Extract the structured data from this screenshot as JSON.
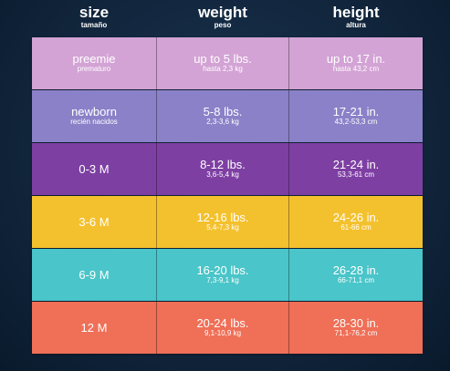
{
  "header": {
    "size": {
      "title": "size",
      "subtitle": "tamaño"
    },
    "weight": {
      "title": "weight",
      "subtitle": "peso"
    },
    "height": {
      "title": "height",
      "subtitle": "altura"
    }
  },
  "rows": [
    {
      "color": "#d3a3d5",
      "size": {
        "main": "preemie",
        "sub": "prematuro"
      },
      "weight": {
        "main": "up to 5 lbs.",
        "sub": "hasta 2,3 kg"
      },
      "height": {
        "main": "up to 17 in.",
        "sub": "hasta 43,2 cm"
      }
    },
    {
      "color": "#8a81c8",
      "size": {
        "main": "newborn",
        "sub": "recién nacidos"
      },
      "weight": {
        "main": "5-8 lbs.",
        "sub": "2,3-3,6 kg"
      },
      "height": {
        "main": "17-21 in.",
        "sub": "43,2-53,3 cm"
      }
    },
    {
      "color": "#7e3fa3",
      "size": {
        "main": "0-3 M",
        "sub": ""
      },
      "weight": {
        "main": "8-12 lbs.",
        "sub": "3,6-5,4 kg"
      },
      "height": {
        "main": "21-24 in.",
        "sub": "53,3-61 cm"
      }
    },
    {
      "color": "#f4c12e",
      "size": {
        "main": "3-6 M",
        "sub": ""
      },
      "weight": {
        "main": "12-16 lbs.",
        "sub": "5,4-7,3 kg"
      },
      "height": {
        "main": "24-26 in.",
        "sub": "61-66 cm"
      }
    },
    {
      "color": "#4ac5c9",
      "size": {
        "main": "6-9 M",
        "sub": ""
      },
      "weight": {
        "main": "16-20 lbs.",
        "sub": "7,3-9,1 kg"
      },
      "height": {
        "main": "26-28 in.",
        "sub": "66-71,1 cm"
      }
    },
    {
      "color": "#ef6f57",
      "size": {
        "main": "12 M",
        "sub": ""
      },
      "weight": {
        "main": "20-24 lbs.",
        "sub": "9,1-10,9 kg"
      },
      "height": {
        "main": "28-30 in.",
        "sub": "71,1-76,2 cm"
      }
    }
  ]
}
